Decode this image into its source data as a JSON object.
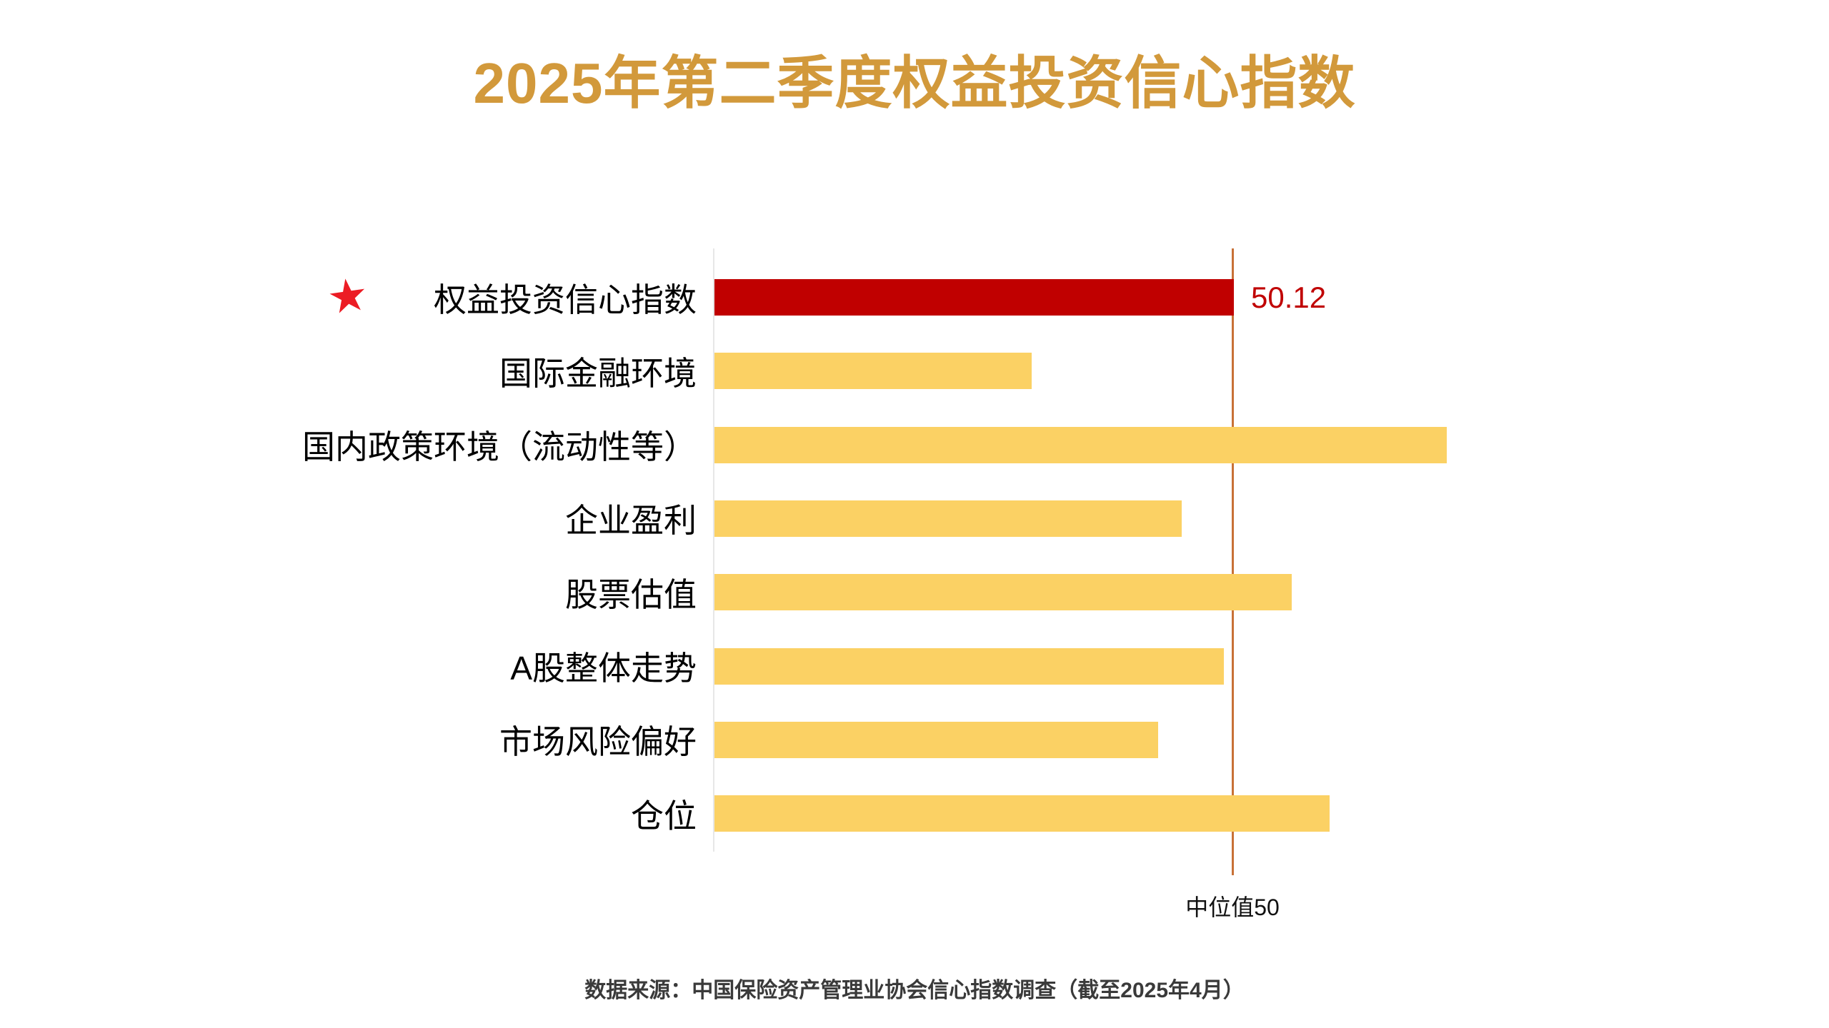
{
  "header": {
    "title": "2025年第二季度权益投资信心指数",
    "title_color": "#D2993B"
  },
  "chart": {
    "star_icon": "★",
    "star_color": "#EC1C24",
    "axis_line_color": "#E7E7E7",
    "median_line_color": "#C87137",
    "median_label_text": "中位值50"
  },
  "footer": {
    "source_text": "数据来源：中国保险资产管理业协会信心指数调查（截至2025年4月）",
    "text_color": "#3A3A3A"
  },
  "chart_data": {
    "type": "bar",
    "orientation": "horizontal",
    "title": "2025年第二季度权益投资信心指数",
    "categories": [
      "权益投资信心指数",
      "国际金融环境",
      "国内政策环境（流动性等）",
      "企业盈利",
      "股票估值",
      "A股整体走势",
      "市场风险偏好",
      "仓位"
    ],
    "values": [
      50.12,
      30.6,
      70.7,
      45.1,
      55.7,
      49.2,
      42.8,
      59.4
    ],
    "highlight_index": 0,
    "data_label": {
      "index": 0,
      "text": "50.12",
      "color": "#C00000"
    },
    "reference_line": {
      "value": 50,
      "label": "中位值50"
    },
    "xlim": [
      0,
      80
    ],
    "bar_color": "#FBD164",
    "highlight_color": "#C00000",
    "grid": false,
    "legend": false,
    "xlabel": "",
    "ylabel": ""
  }
}
